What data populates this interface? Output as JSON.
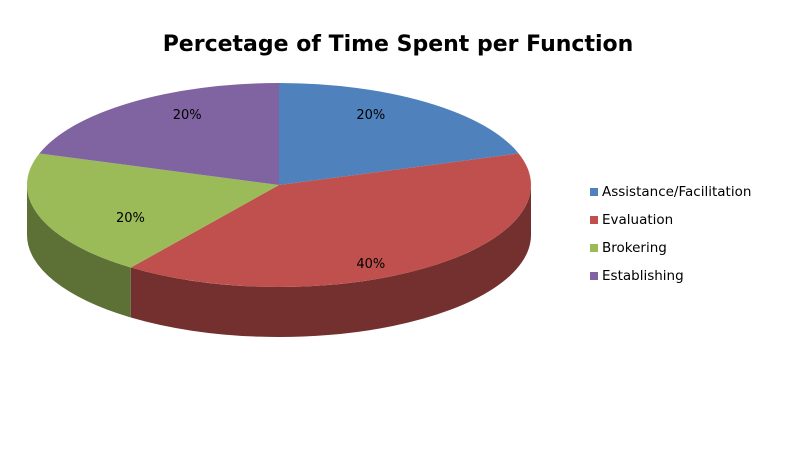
{
  "chart_data": {
    "type": "pie",
    "title": "Percetage of Time Spent per Function",
    "categories": [
      "Assistance/Facilitation",
      "Evaluation",
      "Brokering",
      "Establishing"
    ],
    "values": [
      20,
      40,
      20,
      20
    ],
    "value_labels": [
      "20%",
      "40%",
      "20%",
      "20%"
    ],
    "colors": [
      "#4f81bd",
      "#c0504d",
      "#9bbb59",
      "#8064a2"
    ],
    "legend": "right"
  }
}
